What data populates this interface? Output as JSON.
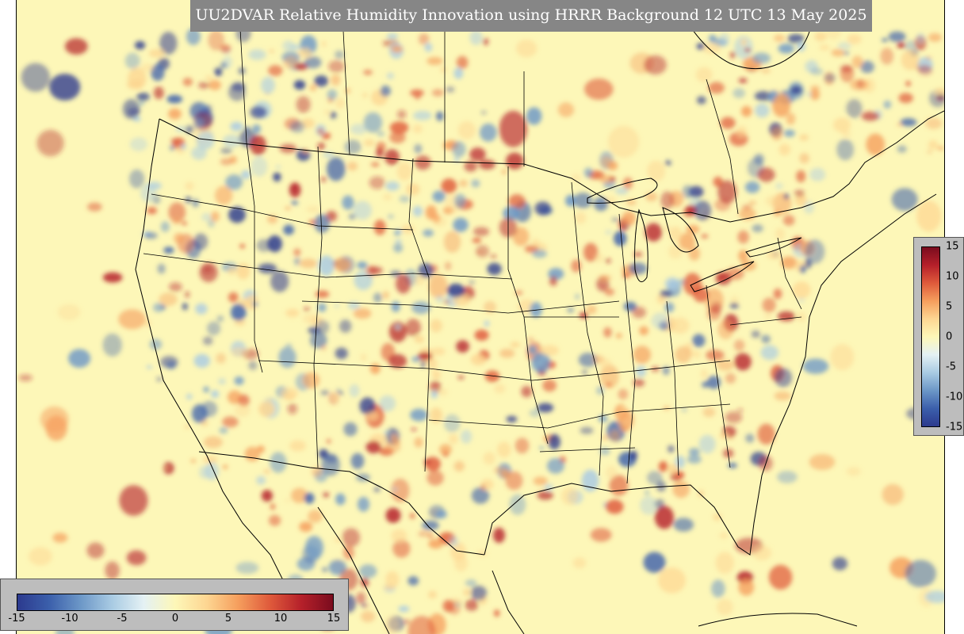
{
  "title": "UU2DVAR Relative Humidity Innovation using HRRR Background 12 UTC 13 May 2025",
  "colorbar": {
    "min": -15,
    "max": 15,
    "ticks_vertical": [
      "15",
      "10",
      "5",
      "0",
      "-5",
      "-10",
      "-15"
    ],
    "ticks_horizontal": [
      "-15",
      "-10",
      "-5",
      "0",
      "5",
      "10",
      "15"
    ],
    "colormap": [
      "#2c3a8e",
      "#3b5fab",
      "#6c97c7",
      "#a9cbe3",
      "#e4f1f4",
      "#fdf7b8",
      "#fdd692",
      "#f59e5d",
      "#df5a3b",
      "#b5202a",
      "#7a0c1e"
    ]
  },
  "map": {
    "region": "CONUS",
    "background_color": "#fdf7b8"
  }
}
